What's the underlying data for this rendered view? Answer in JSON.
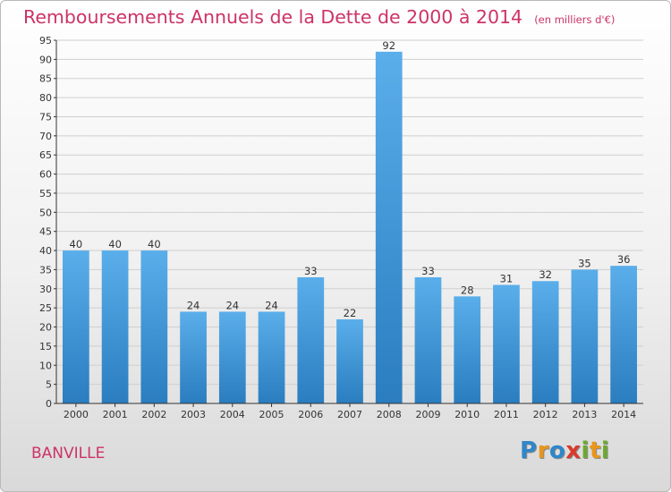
{
  "header": {
    "title": "Remboursements Annuels de la Dette de 2000 à 2014",
    "unit": "(en milliers d'€)"
  },
  "footer": {
    "commune": "BANVILLE",
    "logo_text": "Proxiti"
  },
  "colors": {
    "title": "#cc3366",
    "bar_top": "#5aaeea",
    "bar_bottom": "#2a7dbf",
    "axis": "#333333",
    "grid": "#cfcfcf"
  },
  "chart_data": {
    "type": "bar",
    "title": "Remboursements Annuels de la Dette de 2000 à 2014",
    "subtitle": "(en milliers d'€)",
    "xlabel": "",
    "ylabel": "",
    "categories": [
      "2000",
      "2001",
      "2002",
      "2003",
      "2004",
      "2005",
      "2006",
      "2007",
      "2008",
      "2009",
      "2010",
      "2011",
      "2012",
      "2013",
      "2014"
    ],
    "values": [
      40,
      40,
      40,
      24,
      24,
      24,
      33,
      22,
      92,
      33,
      28,
      31,
      32,
      35,
      36
    ],
    "ylim": [
      0,
      95
    ],
    "yticks": [
      0,
      5,
      10,
      15,
      20,
      25,
      30,
      35,
      40,
      45,
      50,
      55,
      60,
      65,
      70,
      75,
      80,
      85,
      90,
      95
    ],
    "grid": true,
    "legend": "none",
    "data_labels": true
  }
}
